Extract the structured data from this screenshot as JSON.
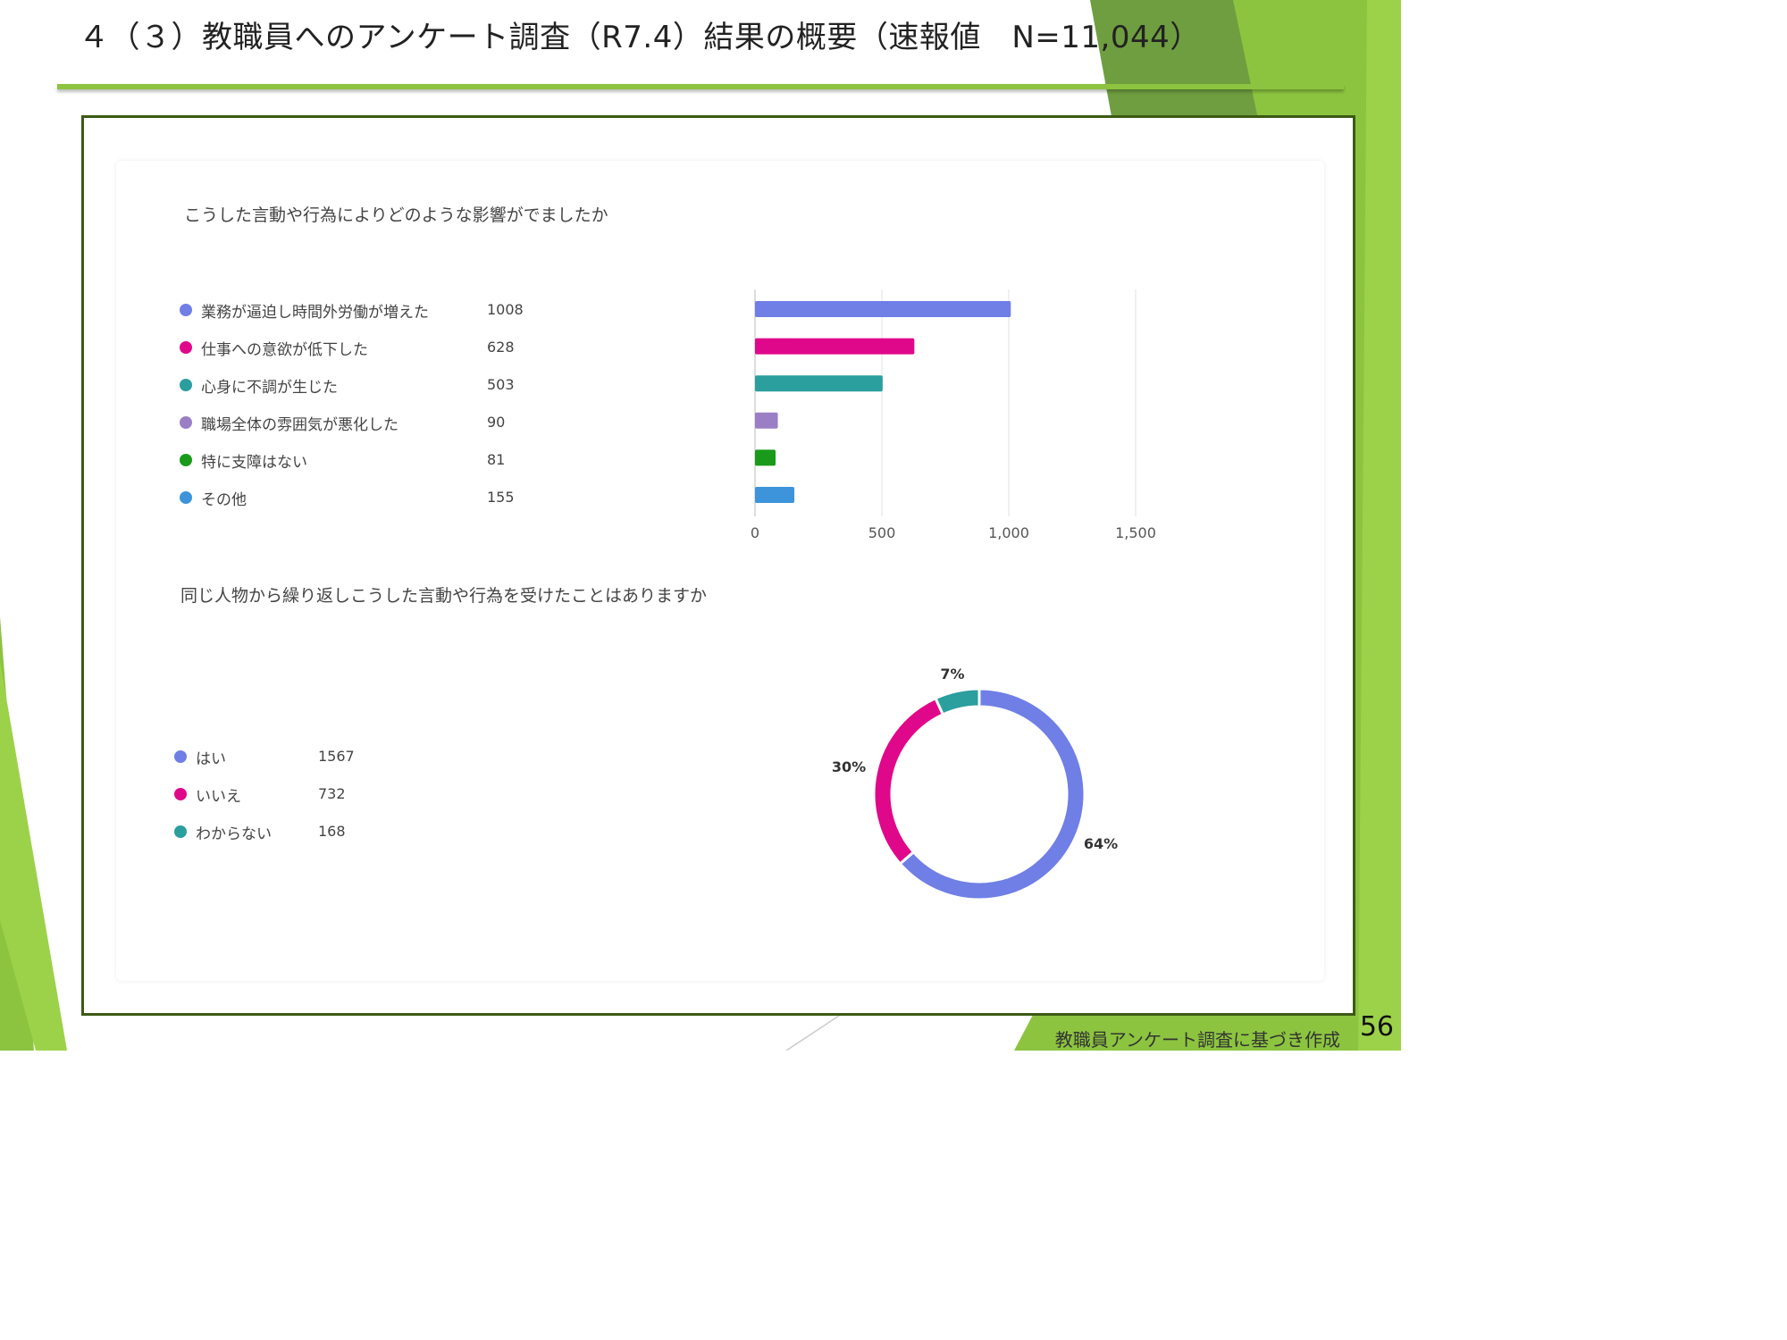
{
  "slide": {
    "title": "４（３）教職員へのアンケート調査（R7.4）結果の概要（速報値　N=11,044）",
    "footer_note": "教職員アンケート調査に基づき作成",
    "page_number": "56",
    "accent_color": "#8cc43f",
    "frame_color": "#3c5a14"
  },
  "chart_data": [
    {
      "type": "bar",
      "orientation": "horizontal",
      "title": "こうした言動や行為によりどのような影響がでましたか",
      "categories": [
        "業務が逼迫し時間外労働が増えた",
        "仕事への意欲が低下した",
        "心身に不調が生じた",
        "職場全体の雰囲気が悪化した",
        "特に支障はない",
        "その他"
      ],
      "values": [
        1008,
        628,
        503,
        90,
        81,
        155
      ],
      "colors": [
        "#6f7fe6",
        "#e0088a",
        "#2b9e9e",
        "#9b7fc4",
        "#1a9a1a",
        "#3d94da"
      ],
      "xlim": [
        0,
        1500
      ],
      "ticks": [
        0,
        500,
        1000,
        1500
      ],
      "tick_labels": [
        "0",
        "500",
        "1,000",
        "1,500"
      ],
      "grid": true,
      "legend": "left"
    },
    {
      "type": "pie",
      "style": "donut",
      "title": "同じ人物から繰り返しこうした言動や行為を受けたことはありますか",
      "categories": [
        "はい",
        "いいえ",
        "わからない"
      ],
      "values": [
        1567,
        732,
        168
      ],
      "percent_labels": [
        "64%",
        "30%",
        "7%"
      ],
      "colors": [
        "#6f7fe6",
        "#e0088a",
        "#2b9e9e"
      ],
      "legend": "left"
    }
  ]
}
